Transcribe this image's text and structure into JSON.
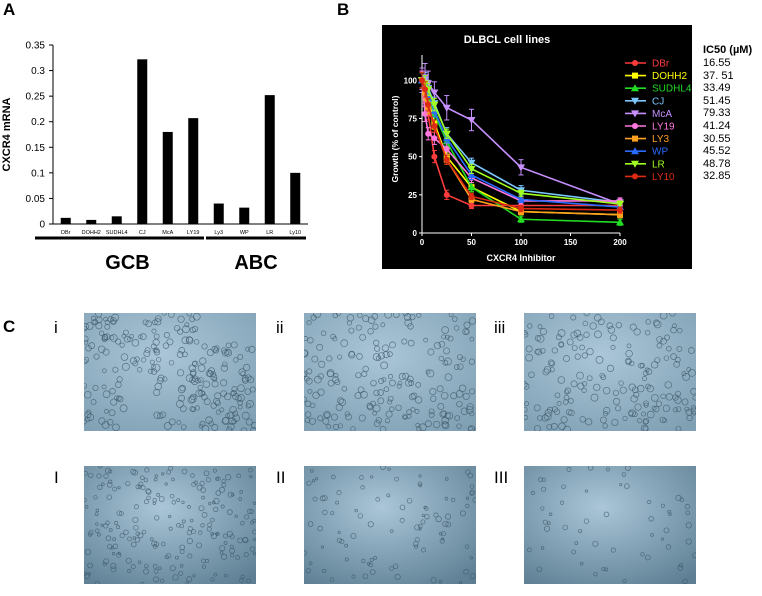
{
  "panel_labels": {
    "a": "A",
    "b": "B",
    "c": "C"
  },
  "chart_data": [
    {
      "type": "bar",
      "ylabel": "CXCR4 mRNA",
      "xlabel": "",
      "ylim": [
        0,
        0.35
      ],
      "yticks": [
        "0",
        "0.05",
        "0.1",
        "0.15",
        "0.2",
        "0.25",
        "0.3",
        "0.35"
      ],
      "categories": [
        "DBr",
        "DOHH2",
        "SUDHL4",
        "CJ",
        "McA",
        "LY19",
        "Ly3",
        "WP",
        "LR",
        "Ly10"
      ],
      "values": [
        0.012,
        0.008,
        0.015,
        0.322,
        0.18,
        0.207,
        0.04,
        0.032,
        0.252,
        0.1
      ],
      "groups": [
        {
          "name": "GCB",
          "from": 0,
          "to": 5
        },
        {
          "name": "ABC",
          "from": 6,
          "to": 9
        }
      ],
      "grid": false,
      "bar_color": "#000000"
    },
    {
      "type": "line",
      "title": "DLBCL cell lines",
      "xlabel": "CXCR4 Inhibitor",
      "ylabel": "Growth (% of control)",
      "xlim": [
        0,
        200
      ],
      "ylim": [
        0,
        110
      ],
      "xticks": [
        "0",
        "50",
        "100",
        "150",
        "200"
      ],
      "yticks": [
        "0",
        "25",
        "50",
        "75",
        "100"
      ],
      "x": [
        0,
        3.125,
        6.25,
        12.5,
        25,
        50,
        100,
        200
      ],
      "background": "#000000",
      "legend_position": "right",
      "ic50_header": "IC50 (µM)",
      "series": [
        {
          "name": "DBr",
          "color": "#ff3b3b",
          "marker": "circle",
          "ic50": "16.55",
          "values": [
            100,
            90,
            78,
            50,
            25,
            18,
            18,
            18
          ],
          "error": [
            6,
            5,
            4,
            4,
            3,
            2,
            2,
            2
          ]
        },
        {
          "name": "DOHH2",
          "color": "#ffff00",
          "marker": "square",
          "ic50": "37. 51",
          "values": [
            100,
            96,
            88,
            72,
            50,
            30,
            14,
            12
          ],
          "error": [
            5,
            5,
            4,
            4,
            3,
            3,
            2,
            2
          ]
        },
        {
          "name": "SUDHL4",
          "color": "#22dd22",
          "marker": "triangle",
          "ic50": "33.49",
          "values": [
            100,
            98,
            90,
            78,
            60,
            30,
            9,
            7
          ],
          "error": [
            5,
            5,
            4,
            4,
            3,
            3,
            2,
            2
          ]
        },
        {
          "name": "CJ",
          "color": "#7ac8ff",
          "marker": "triangle-down",
          "ic50": "51.45",
          "values": [
            100,
            100,
            95,
            85,
            65,
            46,
            28,
            20
          ],
          "error": [
            6,
            5,
            5,
            4,
            4,
            3,
            3,
            2
          ]
        },
        {
          "name": "McA",
          "color": "#c890ff",
          "marker": "triangle-down",
          "ic50": "79.33",
          "values": [
            100,
            102,
            98,
            92,
            82,
            74,
            43,
            19
          ],
          "error": [
            8,
            9,
            8,
            7,
            8,
            7,
            5,
            3
          ]
        },
        {
          "name": "LY19",
          "color": "#ff78e0",
          "marker": "circle",
          "ic50": "41.24",
          "values": [
            100,
            78,
            65,
            62,
            55,
            36,
            21,
            21
          ],
          "error": [
            6,
            5,
            4,
            4,
            4,
            3,
            2,
            2
          ]
        },
        {
          "name": "LY3",
          "color": "#ffa020",
          "marker": "square",
          "ic50": "30.55",
          "values": [
            100,
            92,
            82,
            70,
            48,
            22,
            14,
            12
          ],
          "error": [
            5,
            5,
            4,
            4,
            3,
            2,
            2,
            2
          ]
        },
        {
          "name": "WP",
          "color": "#2a6aff",
          "marker": "triangle",
          "ic50": "45.52",
          "values": [
            100,
            98,
            92,
            80,
            62,
            38,
            22,
            17
          ],
          "error": [
            5,
            5,
            4,
            4,
            3,
            3,
            2,
            2
          ]
        },
        {
          "name": "LR",
          "color": "#a0ff20",
          "marker": "triangle-down",
          "ic50": "48.78",
          "values": [
            100,
            98,
            94,
            84,
            65,
            42,
            26,
            19
          ],
          "error": [
            5,
            5,
            4,
            4,
            3,
            3,
            2,
            2
          ]
        },
        {
          "name": "LY10",
          "color": "#dd2a12",
          "marker": "circle",
          "ic50": "32.85",
          "values": [
            100,
            94,
            84,
            70,
            48,
            24,
            16,
            15
          ],
          "error": [
            5,
            5,
            4,
            4,
            3,
            2,
            2,
            2
          ]
        }
      ]
    }
  ],
  "micrographs": {
    "row1": [
      "i",
      "ii",
      "iii"
    ],
    "row2": [
      "I",
      "II",
      "III"
    ],
    "colors": {
      "light": "#aac6d8",
      "mid": "#7f9fb2",
      "dark": "#5d7e93",
      "cell": "#3e5868"
    },
    "cell_density": [
      1.0,
      0.65,
      0.6,
      0.7,
      0.25,
      0.1
    ]
  }
}
